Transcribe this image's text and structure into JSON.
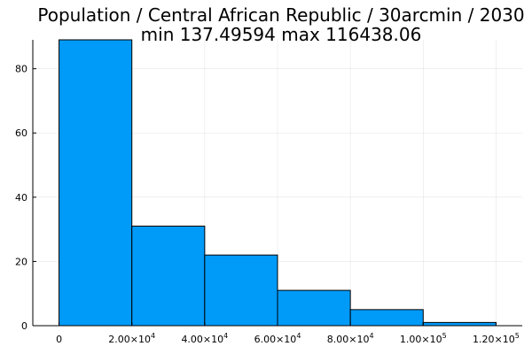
{
  "chart_data": {
    "type": "bar",
    "title_line1": "Population / Central African Republic / 30arcmin / 2030",
    "title_line2": "min 137.49594  max 116438.06",
    "bins": [
      {
        "x0": 0,
        "x1": 20000,
        "count": 89
      },
      {
        "x0": 20000,
        "x1": 40000,
        "count": 31
      },
      {
        "x0": 40000,
        "x1": 60000,
        "count": 22
      },
      {
        "x0": 60000,
        "x1": 80000,
        "count": 11
      },
      {
        "x0": 80000,
        "x1": 100000,
        "count": 5
      },
      {
        "x0": 100000,
        "x1": 120000,
        "count": 1
      }
    ],
    "xlim": [
      -7200,
      127200
    ],
    "ylim": [
      0,
      89
    ],
    "x_ticks": [
      {
        "value": 0,
        "label": "0"
      },
      {
        "value": 20000,
        "mantissa": "2.00×10",
        "exponent": "4"
      },
      {
        "value": 40000,
        "mantissa": "4.00×10",
        "exponent": "4"
      },
      {
        "value": 60000,
        "mantissa": "6.00×10",
        "exponent": "4"
      },
      {
        "value": 80000,
        "mantissa": "8.00×10",
        "exponent": "4"
      },
      {
        "value": 100000,
        "mantissa": "1.00×10",
        "exponent": "5"
      },
      {
        "value": 120000,
        "mantissa": "1.20×10",
        "exponent": "5"
      }
    ],
    "y_ticks": [
      {
        "value": 0,
        "label": "0"
      },
      {
        "value": 20,
        "label": "20"
      },
      {
        "value": 40,
        "label": "40"
      },
      {
        "value": 60,
        "label": "60"
      },
      {
        "value": 80,
        "label": "80"
      }
    ],
    "grid": true,
    "legend": "none",
    "bar_color": "#009AF9",
    "edge_color": "#000000"
  }
}
